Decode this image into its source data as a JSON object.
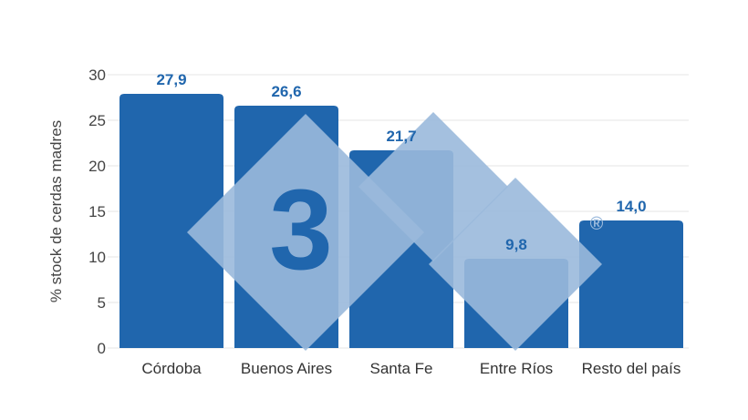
{
  "chart_data": {
    "type": "bar",
    "title": "",
    "xlabel": "",
    "ylabel": "% stock de cerdas madres",
    "categories": [
      "Córdoba",
      "Buenos Aires",
      "Santa Fe",
      "Entre Ríos",
      "Resto del país"
    ],
    "values": [
      27.9,
      26.6,
      21.7,
      9.8,
      14.0
    ],
    "value_labels": [
      "27,9",
      "26,6",
      "21,7",
      "9,8",
      "14,0"
    ],
    "ylim": [
      0,
      30
    ],
    "yticks": [
      0,
      5,
      10,
      15,
      20,
      25,
      30
    ],
    "grid": true,
    "legend": "none"
  },
  "watermark": {
    "text": "3",
    "registered": "®"
  },
  "colors": {
    "bar": "#2066ad",
    "label": "#2066ad",
    "watermark": "#9ab9dc"
  }
}
